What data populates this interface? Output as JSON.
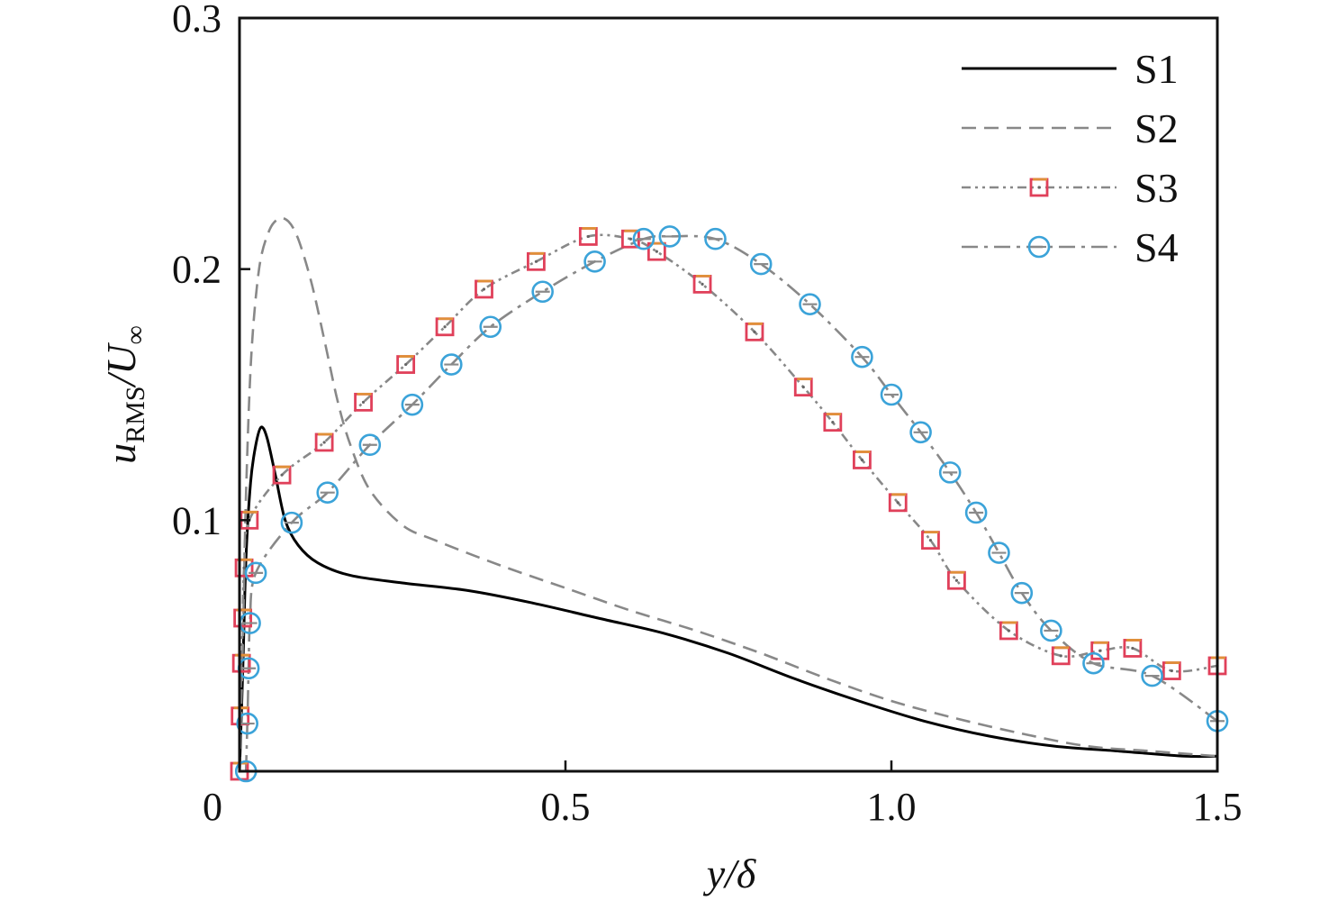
{
  "chart_data": {
    "type": "line",
    "xlabel": "y/δ",
    "ylabel_main": "u",
    "ylabel_sub": "RMS",
    "ylabel_rest": "/U",
    "ylabel_sub2": "∞",
    "xlim": [
      0,
      1.5
    ],
    "ylim": [
      0,
      0.3
    ],
    "x_ticks": [
      0,
      0.5,
      1.0,
      1.5
    ],
    "x_tick_labels": [
      "0",
      "0.5",
      "1.0",
      "1.5"
    ],
    "y_ticks": [
      0.1,
      0.2,
      0.3
    ],
    "y_tick_labels": [
      "0.1",
      "0.2",
      "0.3"
    ],
    "grid": false,
    "legend_position": "top-right",
    "series": [
      {
        "name": "S1",
        "color": "#000000",
        "dash": "",
        "marker": "none",
        "points": [
          [
            0,
            0
          ],
          [
            0.005,
            0.04
          ],
          [
            0.01,
            0.085
          ],
          [
            0.017,
            0.115
          ],
          [
            0.025,
            0.13
          ],
          [
            0.033,
            0.137
          ],
          [
            0.042,
            0.133
          ],
          [
            0.055,
            0.118
          ],
          [
            0.07,
            0.1
          ],
          [
            0.09,
            0.09
          ],
          [
            0.12,
            0.083
          ],
          [
            0.17,
            0.078
          ],
          [
            0.25,
            0.075
          ],
          [
            0.35,
            0.072
          ],
          [
            0.45,
            0.067
          ],
          [
            0.55,
            0.061
          ],
          [
            0.65,
            0.055
          ],
          [
            0.75,
            0.047
          ],
          [
            0.85,
            0.037
          ],
          [
            0.95,
            0.028
          ],
          [
            1.05,
            0.02
          ],
          [
            1.15,
            0.014
          ],
          [
            1.25,
            0.01
          ],
          [
            1.35,
            0.008
          ],
          [
            1.45,
            0.006
          ],
          [
            1.5,
            0.006
          ]
        ]
      },
      {
        "name": "S2",
        "color": "#888888",
        "dash": "16,9",
        "marker": "none",
        "points": [
          [
            0,
            0
          ],
          [
            0.005,
            0.05
          ],
          [
            0.01,
            0.11
          ],
          [
            0.018,
            0.165
          ],
          [
            0.03,
            0.2
          ],
          [
            0.045,
            0.215
          ],
          [
            0.06,
            0.22
          ],
          [
            0.075,
            0.219
          ],
          [
            0.09,
            0.212
          ],
          [
            0.11,
            0.195
          ],
          [
            0.13,
            0.172
          ],
          [
            0.15,
            0.148
          ],
          [
            0.17,
            0.13
          ],
          [
            0.2,
            0.112
          ],
          [
            0.25,
            0.098
          ],
          [
            0.3,
            0.092
          ],
          [
            0.4,
            0.082
          ],
          [
            0.5,
            0.073
          ],
          [
            0.6,
            0.064
          ],
          [
            0.7,
            0.056
          ],
          [
            0.8,
            0.047
          ],
          [
            0.9,
            0.037
          ],
          [
            1.0,
            0.028
          ],
          [
            1.1,
            0.021
          ],
          [
            1.2,
            0.015
          ],
          [
            1.3,
            0.01
          ],
          [
            1.4,
            0.008
          ],
          [
            1.5,
            0.006
          ]
        ]
      },
      {
        "name": "S3",
        "color": "#888888",
        "dash": "10,5,3,5,3,5",
        "marker": "square",
        "marker_color": "#e0405a",
        "marker_accent": "#e0903a",
        "points": [
          [
            0,
            0
          ],
          [
            0.001,
            0.022
          ],
          [
            0.003,
            0.043
          ],
          [
            0.005,
            0.061
          ],
          [
            0.007,
            0.081
          ],
          [
            0.015,
            0.1
          ],
          [
            0.065,
            0.118
          ],
          [
            0.13,
            0.131
          ],
          [
            0.19,
            0.147
          ],
          [
            0.255,
            0.162
          ],
          [
            0.315,
            0.177
          ],
          [
            0.375,
            0.192
          ],
          [
            0.455,
            0.203
          ],
          [
            0.535,
            0.213
          ],
          [
            0.6,
            0.212
          ],
          [
            0.64,
            0.207
          ],
          [
            0.71,
            0.194
          ],
          [
            0.79,
            0.175
          ],
          [
            0.865,
            0.153
          ],
          [
            0.91,
            0.139
          ],
          [
            0.955,
            0.124
          ],
          [
            1.01,
            0.107
          ],
          [
            1.06,
            0.092
          ],
          [
            1.1,
            0.076
          ],
          [
            1.18,
            0.056
          ],
          [
            1.26,
            0.046
          ],
          [
            1.32,
            0.048
          ],
          [
            1.37,
            0.049
          ],
          [
            1.43,
            0.04
          ],
          [
            1.5,
            0.042
          ]
        ]
      },
      {
        "name": "S4",
        "color": "#888888",
        "dash": "18,7,4,7",
        "marker": "circle",
        "marker_color": "#3ba3d9",
        "marker_accent": "#8a8a8a",
        "points": [
          [
            0.01,
            0
          ],
          [
            0.012,
            0.019
          ],
          [
            0.014,
            0.041
          ],
          [
            0.016,
            0.059
          ],
          [
            0.025,
            0.079
          ],
          [
            0.08,
            0.099
          ],
          [
            0.135,
            0.111
          ],
          [
            0.2,
            0.13
          ],
          [
            0.265,
            0.146
          ],
          [
            0.325,
            0.162
          ],
          [
            0.385,
            0.177
          ],
          [
            0.465,
            0.191
          ],
          [
            0.545,
            0.203
          ],
          [
            0.62,
            0.212
          ],
          [
            0.66,
            0.213
          ],
          [
            0.73,
            0.212
          ],
          [
            0.8,
            0.202
          ],
          [
            0.875,
            0.186
          ],
          [
            0.955,
            0.165
          ],
          [
            1.0,
            0.15
          ],
          [
            1.045,
            0.135
          ],
          [
            1.09,
            0.119
          ],
          [
            1.13,
            0.103
          ],
          [
            1.165,
            0.087
          ],
          [
            1.2,
            0.071
          ],
          [
            1.245,
            0.056
          ],
          [
            1.31,
            0.043
          ],
          [
            1.4,
            0.038
          ],
          [
            1.5,
            0.02
          ]
        ]
      }
    ]
  }
}
